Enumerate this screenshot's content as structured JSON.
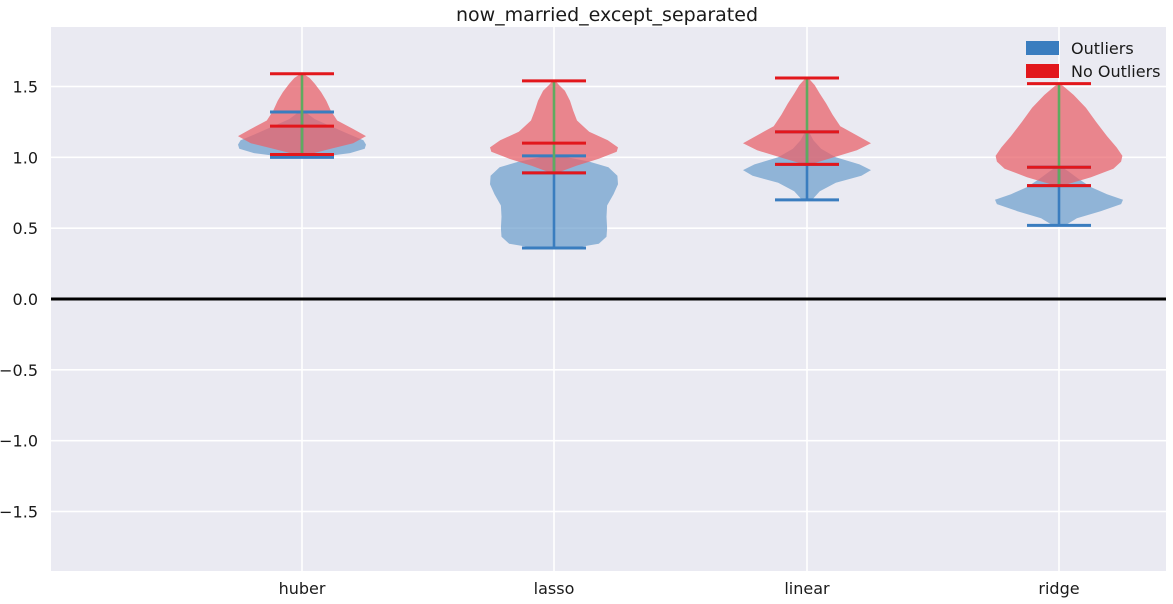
{
  "chart_data": {
    "type": "violin",
    "title": "now_married_except_separated",
    "xlabel": "",
    "ylabel": "",
    "categories": [
      "huber",
      "lasso",
      "linear",
      "ridge"
    ],
    "ylim": [
      -1.92,
      1.92
    ],
    "yticks": [
      1.5,
      1.0,
      0.5,
      0.0,
      -0.5,
      -1.0,
      -1.5
    ],
    "ytick_labels": [
      "1.5",
      "1.0",
      "0.5",
      "0.0",
      "−0.5",
      "−1.0",
      "−1.5"
    ],
    "grid": true,
    "reference_line": 0.0,
    "legend": {
      "placement": "top-right",
      "entries": [
        {
          "label": "Outliers",
          "color": "#3a7dbf"
        },
        {
          "label": "No Outliers",
          "color": "#e2171c"
        }
      ]
    },
    "series": [
      {
        "name": "Outliers",
        "color": "#3a7dbf",
        "fill": "#6a9ccc",
        "violins": [
          {
            "category": "huber",
            "min": 1.0,
            "mean": 1.32,
            "max": 1.32,
            "mode": 1.09,
            "profile": [
              [
                1.0,
                0.25
              ],
              [
                1.03,
                0.75
              ],
              [
                1.06,
                0.98
              ],
              [
                1.09,
                1.0
              ],
              [
                1.12,
                0.96
              ],
              [
                1.17,
                0.7
              ],
              [
                1.22,
                0.45
              ],
              [
                1.27,
                0.2
              ],
              [
                1.32,
                0.05
              ]
            ]
          },
          {
            "category": "lasso",
            "min": 0.36,
            "mean": 0.89,
            "max": 1.01,
            "mode": 0.85,
            "profile": [
              [
                0.36,
                0.3
              ],
              [
                0.39,
                0.7
              ],
              [
                0.44,
                0.82
              ],
              [
                0.5,
                0.83
              ],
              [
                0.58,
                0.82
              ],
              [
                0.66,
                0.83
              ],
              [
                0.74,
                0.93
              ],
              [
                0.81,
                1.0
              ],
              [
                0.87,
                0.99
              ],
              [
                0.93,
                0.85
              ],
              [
                0.97,
                0.55
              ],
              [
                1.01,
                0.1
              ]
            ]
          },
          {
            "category": "linear",
            "min": 0.7,
            "mean": 0.95,
            "max": 1.18,
            "mode": 0.92,
            "profile": [
              [
                0.7,
                0.08
              ],
              [
                0.76,
                0.2
              ],
              [
                0.82,
                0.45
              ],
              [
                0.87,
                0.85
              ],
              [
                0.91,
                1.0
              ],
              [
                0.95,
                0.82
              ],
              [
                1.0,
                0.45
              ],
              [
                1.06,
                0.22
              ],
              [
                1.12,
                0.1
              ],
              [
                1.18,
                0.03
              ]
            ]
          },
          {
            "category": "ridge",
            "min": 0.52,
            "mean": 0.8,
            "max": 0.93,
            "mode": 0.69,
            "profile": [
              [
                0.52,
                0.1
              ],
              [
                0.57,
                0.28
              ],
              [
                0.62,
                0.65
              ],
              [
                0.67,
                0.97
              ],
              [
                0.7,
                1.0
              ],
              [
                0.74,
                0.75
              ],
              [
                0.79,
                0.5
              ],
              [
                0.85,
                0.3
              ],
              [
                0.9,
                0.15
              ],
              [
                0.93,
                0.05
              ]
            ]
          }
        ]
      },
      {
        "name": "No Outliers",
        "color": "#e2171c",
        "fill": "#e8636b",
        "violins": [
          {
            "category": "huber",
            "min": 1.02,
            "mean": 1.22,
            "max": 1.59,
            "mode": 1.15,
            "profile": [
              [
                1.02,
                0.1
              ],
              [
                1.06,
                0.45
              ],
              [
                1.1,
                0.8
              ],
              [
                1.15,
                1.0
              ],
              [
                1.2,
                0.8
              ],
              [
                1.26,
                0.55
              ],
              [
                1.33,
                0.45
              ],
              [
                1.4,
                0.38
              ],
              [
                1.46,
                0.3
              ],
              [
                1.52,
                0.2
              ],
              [
                1.56,
                0.12
              ],
              [
                1.59,
                0.02
              ]
            ]
          },
          {
            "category": "lasso",
            "min": 0.89,
            "mean": 1.1,
            "max": 1.54,
            "mode": 1.06,
            "profile": [
              [
                0.89,
                0.05
              ],
              [
                0.94,
                0.35
              ],
              [
                0.99,
                0.7
              ],
              [
                1.04,
                0.98
              ],
              [
                1.07,
                1.0
              ],
              [
                1.12,
                0.84
              ],
              [
                1.18,
                0.55
              ],
              [
                1.26,
                0.36
              ],
              [
                1.33,
                0.3
              ],
              [
                1.4,
                0.25
              ],
              [
                1.47,
                0.17
              ],
              [
                1.51,
                0.08
              ],
              [
                1.54,
                0.02
              ]
            ]
          },
          {
            "category": "linear",
            "min": 0.95,
            "mean": 1.18,
            "max": 1.56,
            "mode": 1.11,
            "profile": [
              [
                0.95,
                0.05
              ],
              [
                1.0,
                0.42
              ],
              [
                1.05,
                0.78
              ],
              [
                1.1,
                1.0
              ],
              [
                1.15,
                0.8
              ],
              [
                1.22,
                0.52
              ],
              [
                1.3,
                0.4
              ],
              [
                1.38,
                0.3
              ],
              [
                1.45,
                0.2
              ],
              [
                1.51,
                0.12
              ],
              [
                1.56,
                0.02
              ]
            ]
          },
          {
            "category": "ridge",
            "min": 0.8,
            "mean": 0.93,
            "max": 1.52,
            "mode": 1.0,
            "profile": [
              [
                0.8,
                0.05
              ],
              [
                0.86,
                0.5
              ],
              [
                0.92,
                0.85
              ],
              [
                0.97,
                0.97
              ],
              [
                1.01,
                0.99
              ],
              [
                1.07,
                0.9
              ],
              [
                1.15,
                0.75
              ],
              [
                1.25,
                0.58
              ],
              [
                1.35,
                0.42
              ],
              [
                1.44,
                0.23
              ],
              [
                1.49,
                0.1
              ],
              [
                1.52,
                0.02
              ]
            ]
          }
        ]
      }
    ],
    "median_line_color": "#5faa5f"
  }
}
